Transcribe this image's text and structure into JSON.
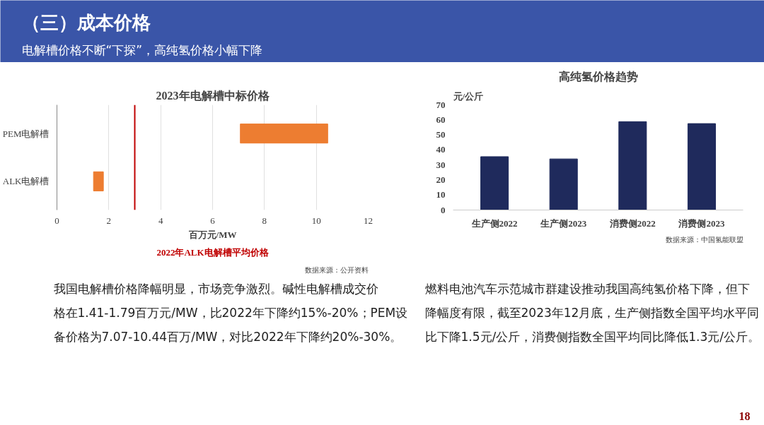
{
  "chart_data": [
    {
      "type": "other",
      "title": "（三）成本价格",
      "subtitle": "电解槽价格不断“下探”，高纯氢价格小幅下降",
      "annotations": [
        "我国电解槽价格降幅明显，市场竞争激烈。碱性电解槽成交价格在1.41-1.79百万元/MW，比2022年下降约15%-20%；PEM设备价格为7.07-10.44百万/MW，对比2022年下降约20%-30%。",
        "燃料电池汽车示范城市群建设推动我国高纯氢价格下降，但下降幅度有限，截至2023年12月底，生产侧指数全国平均水平同比下降1.5元/公斤，消费侧指数全国平均同比降低1.3元/公斤。",
        "18"
      ]
    },
    {
      "type": "bar",
      "orientation": "horizontal",
      "title": "2023年电解槽中标价格",
      "xlabel": "百万元/MW",
      "categories": [
        "PEM电解槽",
        "ALK电解槽"
      ],
      "base": [
        7.07,
        1.41
      ],
      "values": [
        3.37,
        0.38
      ],
      "color": "#ed7d31",
      "xlim": [
        0,
        12
      ],
      "xticks": [
        0,
        2,
        4,
        6,
        8,
        10,
        12
      ],
      "grid": "x",
      "ref_lines": [
        {
          "axis": "x",
          "value": 3,
          "label": "2022年ALK电解槽平均价格",
          "color": "#c00000"
        }
      ],
      "annotations": [
        "数据来源：公开资料"
      ]
    },
    {
      "type": "bar",
      "title": "高纯氢价格趋势",
      "ylabel": "元/公斤",
      "categories": [
        "生产侧2022",
        "生产侧2023",
        "消费侧2022",
        "消费侧2023"
      ],
      "values": [
        35.5,
        34,
        58.8,
        57.5
      ],
      "color": "#1f2a5c",
      "ylim": [
        0,
        70
      ],
      "yticks": [
        0,
        10,
        20,
        30,
        40,
        50,
        60,
        70
      ],
      "grid": false,
      "annotations": [
        "数据来源：中国氢能联盟"
      ]
    }
  ]
}
